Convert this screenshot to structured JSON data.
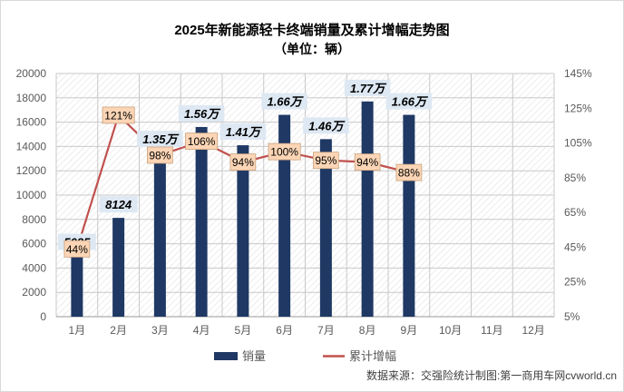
{
  "chart_data": {
    "type": "bar",
    "title": "2025年新能源轻卡终端销量及累计增幅走势图",
    "subtitle": "（单位：辆）",
    "categories": [
      "1月",
      "2月",
      "3月",
      "4月",
      "5月",
      "6月",
      "7月",
      "8月",
      "9月",
      "10月",
      "11月",
      "12月"
    ],
    "series": [
      {
        "name": "销量",
        "type": "bar",
        "axis": "left",
        "color": "#1f3864",
        "values": [
          5035,
          8124,
          13500,
          15600,
          14100,
          16600,
          14600,
          17700,
          16600,
          null,
          null,
          null
        ],
        "labels": [
          "5035",
          "8124",
          "1.35万",
          "1.56万",
          "1.41万",
          "1.66万",
          "1.46万",
          "1.77万",
          "1.66万",
          "",
          "",
          ""
        ]
      },
      {
        "name": "累计增幅",
        "type": "line",
        "axis": "right",
        "color": "#c0504d",
        "values": [
          44,
          121,
          98,
          106,
          94,
          100,
          95,
          94,
          88,
          null,
          null,
          null
        ],
        "labels": [
          "44%",
          "121%",
          "98%",
          "106%",
          "94%",
          "100%",
          "95%",
          "94%",
          "88%",
          "",
          "",
          ""
        ]
      }
    ],
    "y_left": {
      "min": 0,
      "max": 20000,
      "step": 2000,
      "ticks": [
        "0",
        "2000",
        "4000",
        "6000",
        "8000",
        "10000",
        "12000",
        "14000",
        "16000",
        "18000",
        "20000"
      ]
    },
    "y_right": {
      "min": 5,
      "max": 145,
      "step": 20,
      "ticks": [
        "5%",
        "25%",
        "45%",
        "65%",
        "85%",
        "105%",
        "125%",
        "145%"
      ]
    },
    "grid": true,
    "legend_position": "bottom",
    "source": "数据来源：交强险统计制图:第一商用车网cvworld.cn"
  },
  "colors": {
    "bar": "#1f3864",
    "line": "#c0504d",
    "bar_label_bg": "#dde8f3",
    "line_label_bg": "#fbd5b5",
    "line_label_border": "#c9a27e"
  }
}
